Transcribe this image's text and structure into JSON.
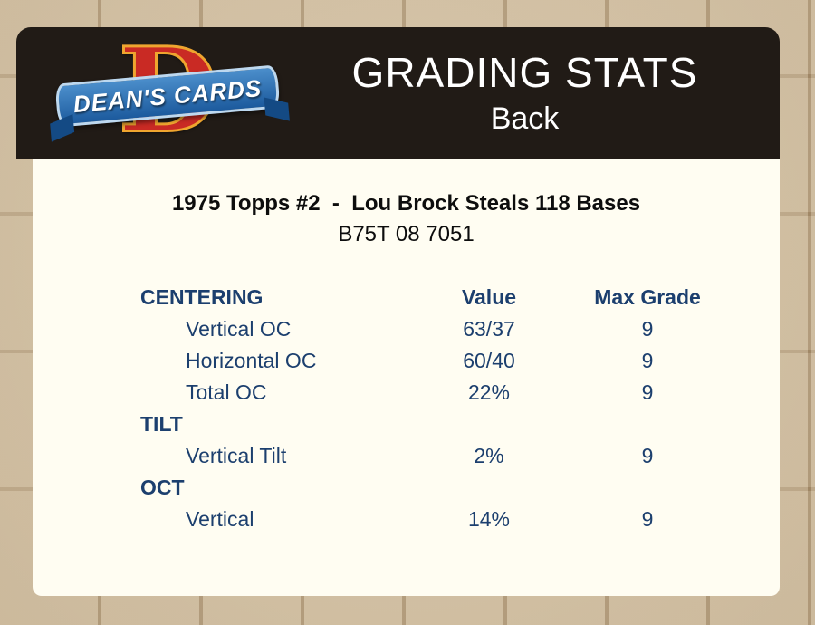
{
  "header": {
    "title": "GRADING STATS",
    "subtitle": "Back",
    "logo": {
      "letter": "D",
      "text": "DEAN'S CARDS"
    }
  },
  "card": {
    "title": "1975 Topps #2  -  Lou Brock Steals 118 Bases",
    "serial": "B75T 08 7051"
  },
  "table": {
    "columns": [
      "Value",
      "Max Grade"
    ],
    "sections": [
      {
        "label": "CENTERING",
        "rows": [
          {
            "label": "Vertical OC",
            "value": "63/37",
            "max_grade": "9"
          },
          {
            "label": "Horizontal OC",
            "value": "60/40",
            "max_grade": "9"
          },
          {
            "label": "Total OC",
            "value": "22%",
            "max_grade": "9"
          }
        ]
      },
      {
        "label": "TILT",
        "rows": [
          {
            "label": "Vertical Tilt",
            "value": "2%",
            "max_grade": "9"
          }
        ]
      },
      {
        "label": "OCT",
        "rows": [
          {
            "label": "Vertical",
            "value": "14%",
            "max_grade": "9"
          }
        ]
      }
    ]
  },
  "colors": {
    "page_background": "#c5ae8c",
    "header_background": "#211b16",
    "panel_background": "#fffdf2",
    "text_navy": "#1c3f6e",
    "logo_red": "#c92a24",
    "logo_gold": "#efa52f",
    "logo_blue": "#1c5a9d"
  }
}
